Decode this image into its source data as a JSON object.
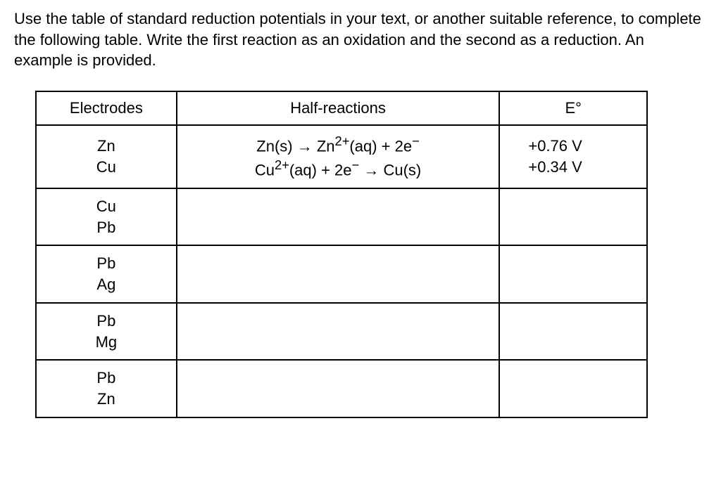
{
  "instructions": "Use the table of standard reduction potentials in your text, or another suitable reference, to complete the following table. Write the first reaction as an oxidation and the second as a reduction. An example is provided.",
  "table": {
    "headers": {
      "electrodes": "Electrodes",
      "reactions": "Half-reactions",
      "potential": "E°"
    },
    "rows": [
      {
        "electrode1": "Zn",
        "electrode2": "Cu",
        "reaction1_html": "Zn(s) → Zn<sup>2+</sup>(aq) + 2e<sup>−</sup>",
        "reaction2_html": "Cu<sup>2+</sup>(aq) + 2e<sup>−</sup> → Cu(s)",
        "potential1": "+0.76 V",
        "potential2": "+0.34 V"
      },
      {
        "electrode1": "Cu",
        "electrode2": "Pb",
        "reaction1_html": "",
        "reaction2_html": "",
        "potential1": "",
        "potential2": ""
      },
      {
        "electrode1": "Pb",
        "electrode2": "Ag",
        "reaction1_html": "",
        "reaction2_html": "",
        "potential1": "",
        "potential2": ""
      },
      {
        "electrode1": "Pb",
        "electrode2": "Mg",
        "reaction1_html": "",
        "reaction2_html": "",
        "potential1": "",
        "potential2": ""
      },
      {
        "electrode1": "Pb",
        "electrode2": "Zn",
        "reaction1_html": "",
        "reaction2_html": "",
        "potential1": "",
        "potential2": ""
      }
    ]
  }
}
